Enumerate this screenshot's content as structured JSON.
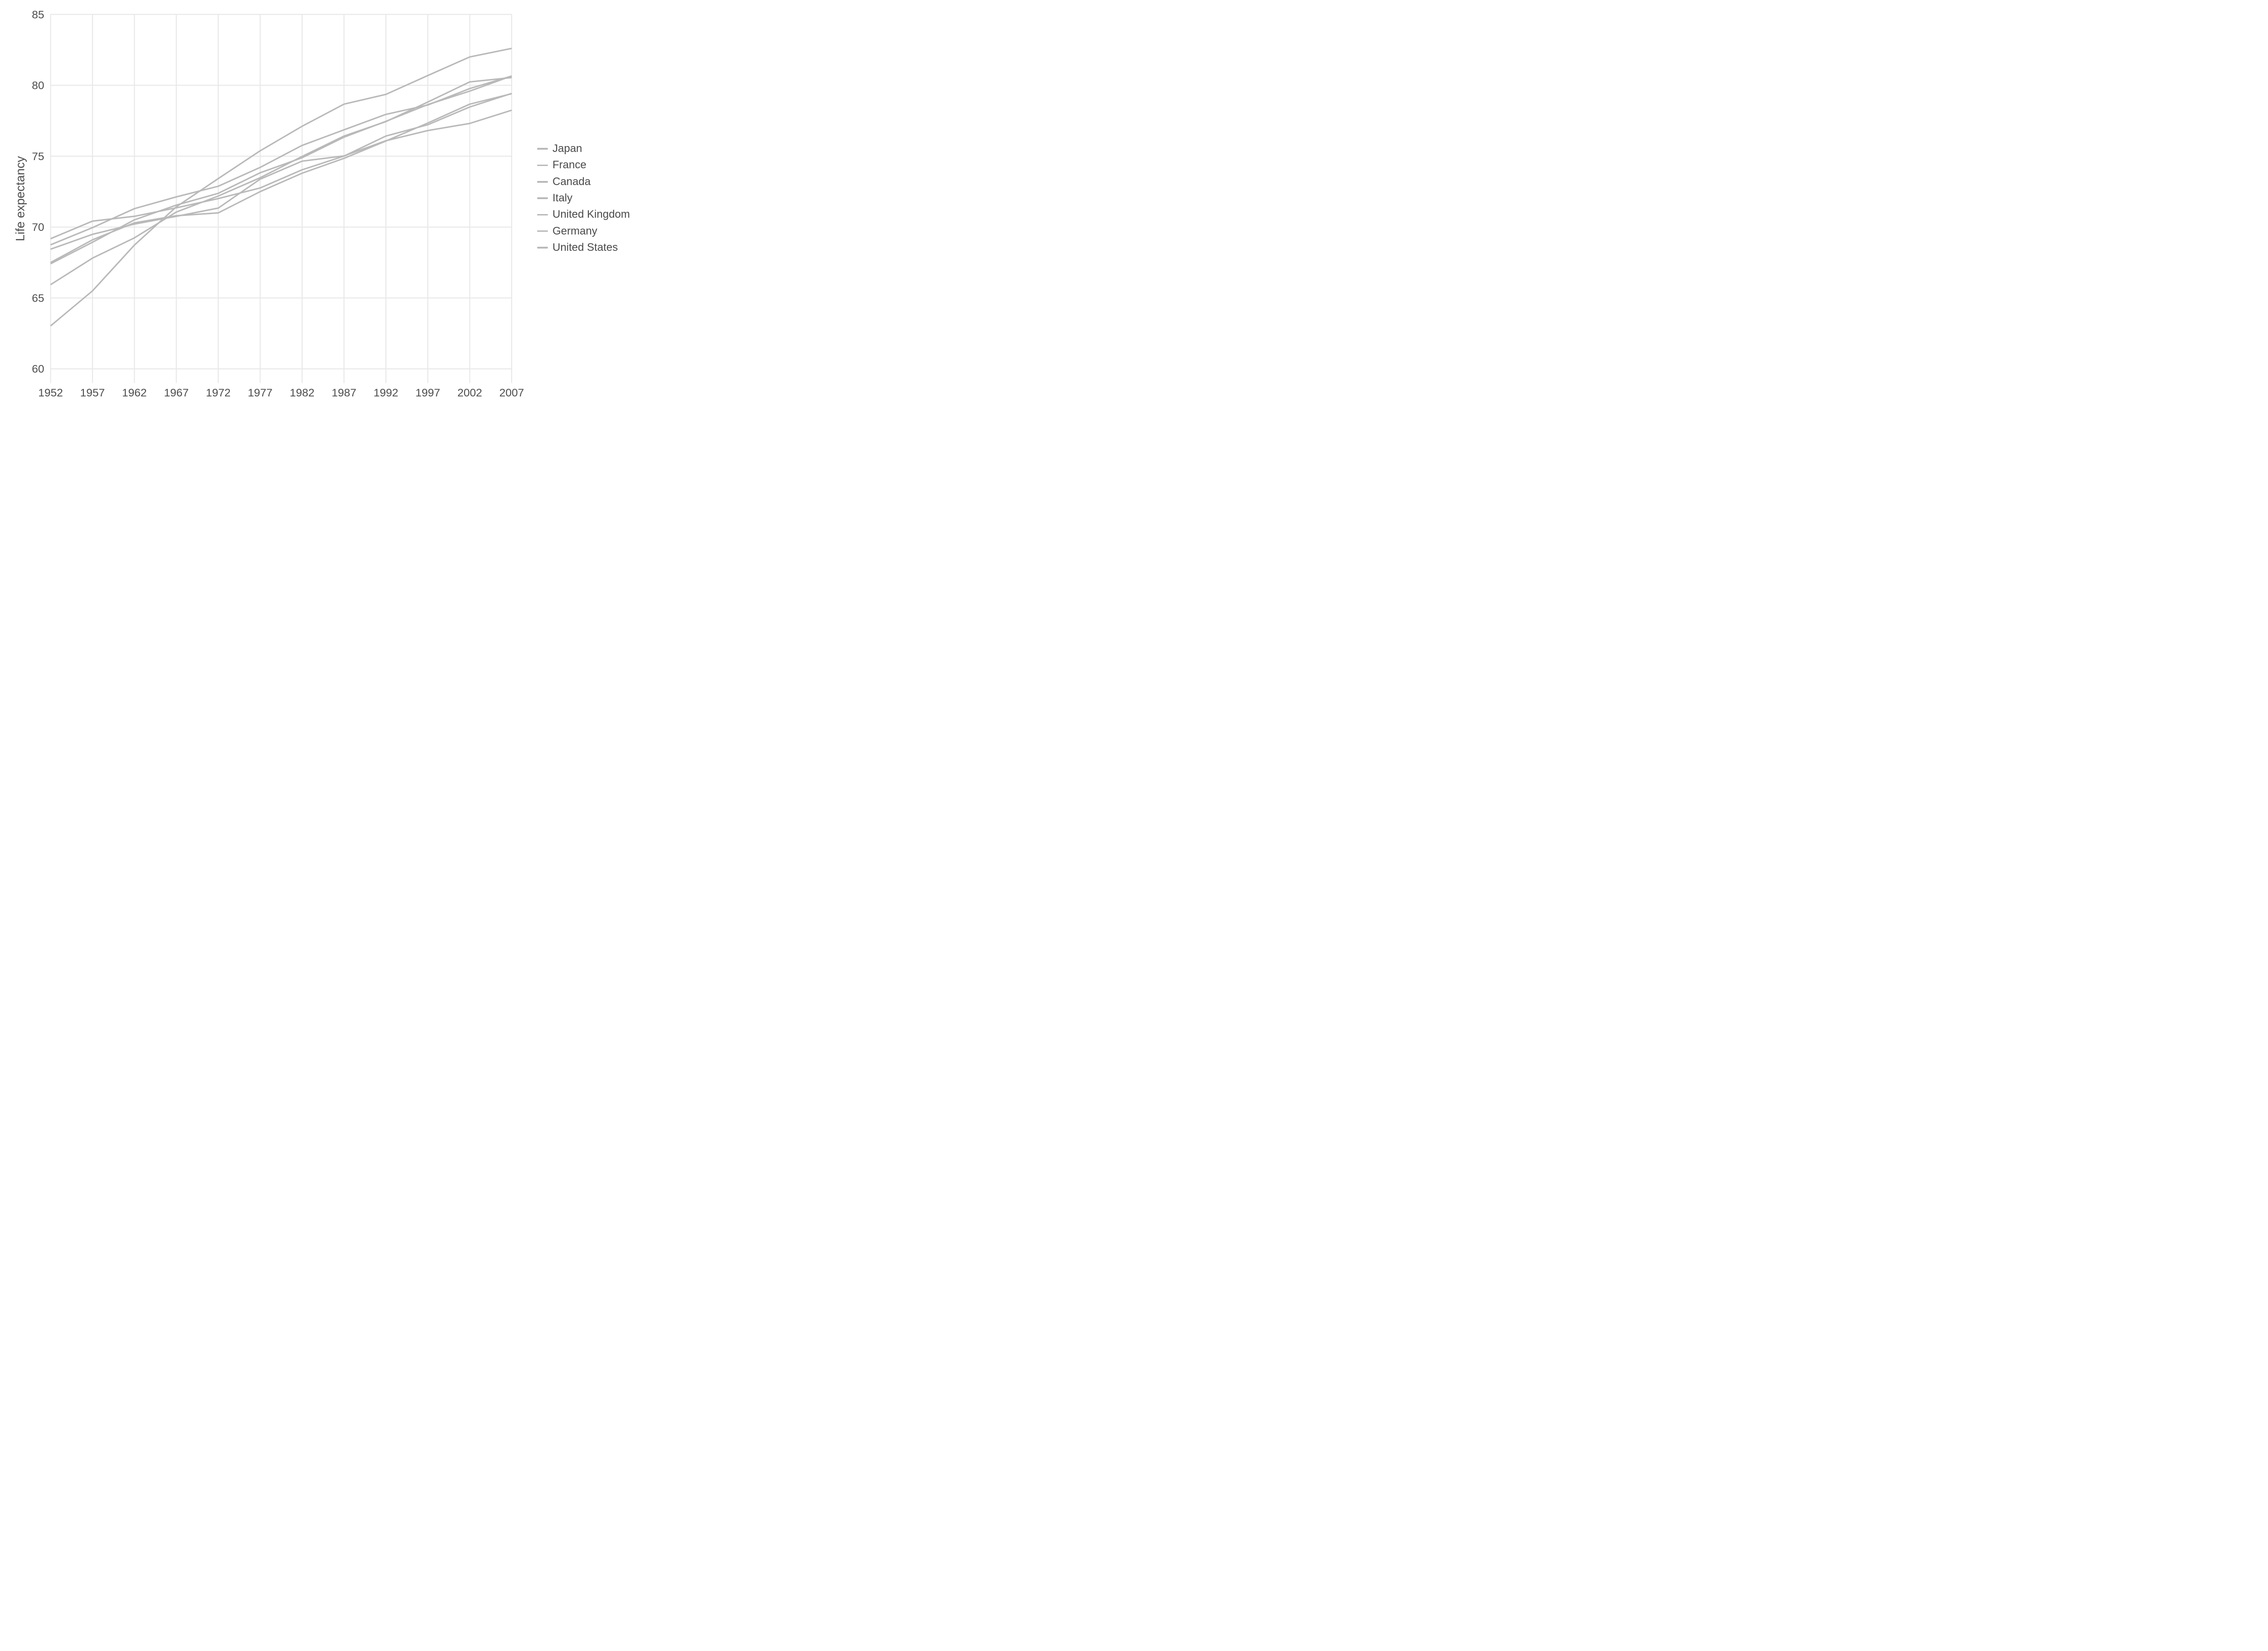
{
  "chart_data": {
    "type": "line",
    "title": "",
    "xlabel": "",
    "ylabel": "Life expectancy",
    "x": [
      1952,
      1957,
      1962,
      1967,
      1972,
      1977,
      1982,
      1987,
      1992,
      1997,
      2002,
      2007
    ],
    "x_tick_labels": [
      "1952",
      "1957",
      "1962",
      "1967",
      "1972",
      "1977",
      "1982",
      "1987",
      "1992",
      "1997",
      "2002",
      "2007"
    ],
    "y_ticks": [
      60,
      65,
      70,
      75,
      80,
      85
    ],
    "y_tick_labels": [
      "60",
      "65",
      "70",
      "75",
      "80",
      "85"
    ],
    "xlim": [
      1952,
      2007
    ],
    "ylim": [
      59,
      85
    ],
    "grid": true,
    "legend_position": "right",
    "colors": {
      "series_line": "#b9b9b9",
      "gridline": "#e8e8e8",
      "text": "#4d4d4d",
      "background": "#ffffff"
    },
    "series": [
      {
        "name": "Japan",
        "values": [
          63.03,
          65.5,
          68.73,
          71.43,
          73.42,
          75.38,
          77.11,
          78.67,
          79.36,
          80.69,
          82.0,
          82.603
        ]
      },
      {
        "name": "France",
        "values": [
          67.41,
          68.93,
          70.51,
          71.55,
          72.38,
          73.83,
          74.89,
          76.34,
          77.46,
          78.64,
          79.59,
          80.657
        ]
      },
      {
        "name": "Canada",
        "values": [
          68.75,
          69.96,
          71.3,
          72.13,
          72.88,
          74.21,
          75.76,
          76.86,
          77.95,
          78.61,
          79.77,
          80.653
        ]
      },
      {
        "name": "Italy",
        "values": [
          65.94,
          67.81,
          69.24,
          71.06,
          72.19,
          73.48,
          74.98,
          76.42,
          77.44,
          78.82,
          80.24,
          80.546
        ]
      },
      {
        "name": "United Kingdom",
        "values": [
          69.18,
          70.42,
          70.76,
          71.36,
          72.01,
          72.76,
          74.04,
          75.007,
          76.42,
          77.218,
          78.471,
          79.425
        ]
      },
      {
        "name": "Germany",
        "values": [
          67.5,
          69.1,
          70.3,
          70.8,
          71.0,
          72.5,
          73.8,
          74.847,
          76.07,
          77.34,
          78.67,
          79.406
        ]
      },
      {
        "name": "United States",
        "values": [
          68.44,
          69.49,
          70.21,
          70.76,
          71.34,
          73.38,
          74.65,
          75.02,
          76.09,
          76.81,
          77.31,
          78.242
        ]
      }
    ]
  }
}
